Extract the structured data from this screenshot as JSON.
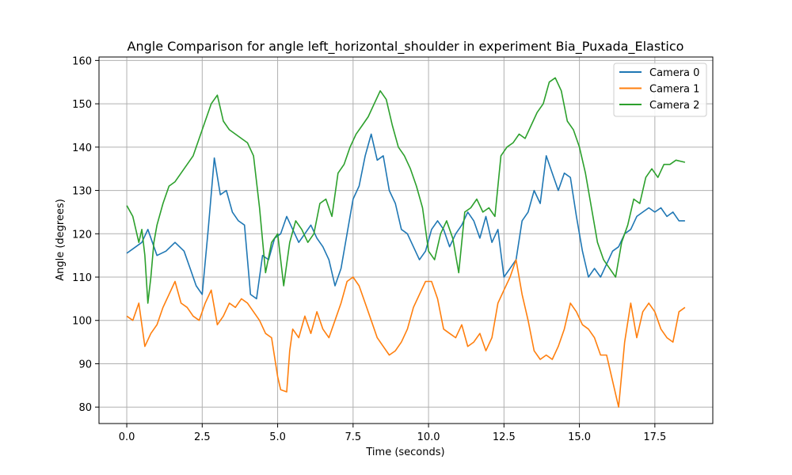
{
  "chart_data": {
    "type": "line",
    "title": "Angle Comparison for angle left_horizontal_shoulder in experiment Bia_Puxada_Elastico",
    "xlabel": "Time (seconds)",
    "ylabel": "Angle (degrees)",
    "xlim": [
      -0.92,
      19.42
    ],
    "ylim": [
      76.2,
      160.8
    ],
    "xticks": [
      0.0,
      2.5,
      5.0,
      7.5,
      10.0,
      12.5,
      15.0,
      17.5
    ],
    "xtick_labels": [
      "0.0",
      "2.5",
      "5.0",
      "7.5",
      "10.0",
      "12.5",
      "15.0",
      "17.5"
    ],
    "yticks": [
      80,
      90,
      100,
      110,
      120,
      130,
      140,
      150,
      160
    ],
    "ytick_labels": [
      "80",
      "90",
      "100",
      "110",
      "120",
      "130",
      "140",
      "150",
      "160"
    ],
    "grid": true,
    "legend_position": "top-right",
    "series": [
      {
        "name": "Camera 0",
        "color": "#1f77b4",
        "x": [
          0.0,
          0.3,
          0.5,
          0.7,
          1.0,
          1.3,
          1.6,
          1.9,
          2.1,
          2.3,
          2.5,
          2.7,
          2.9,
          3.1,
          3.3,
          3.5,
          3.7,
          3.9,
          4.1,
          4.3,
          4.5,
          4.7,
          4.9,
          5.1,
          5.3,
          5.5,
          5.7,
          5.9,
          6.1,
          6.3,
          6.5,
          6.7,
          6.9,
          7.1,
          7.3,
          7.5,
          7.7,
          7.9,
          8.1,
          8.3,
          8.5,
          8.7,
          8.9,
          9.1,
          9.3,
          9.5,
          9.7,
          9.9,
          10.1,
          10.3,
          10.5,
          10.7,
          10.9,
          11.1,
          11.3,
          11.5,
          11.7,
          11.9,
          12.1,
          12.3,
          12.5,
          12.7,
          12.9,
          13.1,
          13.3,
          13.5,
          13.7,
          13.9,
          14.1,
          14.3,
          14.5,
          14.7,
          14.9,
          15.1,
          15.3,
          15.5,
          15.7,
          15.9,
          16.1,
          16.3,
          16.5,
          16.7,
          16.9,
          17.1,
          17.3,
          17.5,
          17.7,
          17.9,
          18.1,
          18.3,
          18.5
        ],
        "y": [
          115.5,
          117,
          118,
          121,
          115,
          116,
          118,
          116,
          112,
          108,
          106,
          121,
          137.5,
          129,
          130,
          125,
          123,
          122,
          106,
          105,
          115,
          114,
          119,
          120,
          124,
          121,
          118,
          120,
          122,
          119,
          117,
          114,
          108,
          112,
          120,
          128,
          131,
          138,
          143,
          137,
          138,
          130,
          127,
          121,
          120,
          117,
          114,
          116,
          121,
          123,
          121,
          117,
          120,
          122,
          125,
          123,
          119,
          124,
          118,
          121,
          110,
          112,
          114,
          123,
          125,
          130,
          127,
          138,
          134,
          130,
          134,
          133,
          124,
          116,
          110,
          112,
          110,
          113,
          116,
          117,
          120,
          121,
          124,
          125,
          126,
          125,
          126,
          124,
          125,
          123,
          123
        ]
      },
      {
        "name": "Camera 1",
        "color": "#ff7f0e",
        "x": [
          0.0,
          0.2,
          0.4,
          0.6,
          0.8,
          1.0,
          1.2,
          1.4,
          1.6,
          1.8,
          2.0,
          2.2,
          2.4,
          2.6,
          2.8,
          3.0,
          3.2,
          3.4,
          3.6,
          3.8,
          4.0,
          4.2,
          4.4,
          4.6,
          4.8,
          5.0,
          5.1,
          5.3,
          5.4,
          5.5,
          5.7,
          5.9,
          6.1,
          6.3,
          6.5,
          6.7,
          6.9,
          7.1,
          7.3,
          7.5,
          7.7,
          7.9,
          8.1,
          8.3,
          8.5,
          8.7,
          8.9,
          9.1,
          9.3,
          9.5,
          9.7,
          9.9,
          10.1,
          10.3,
          10.5,
          10.7,
          10.9,
          11.1,
          11.3,
          11.5,
          11.7,
          11.9,
          12.1,
          12.3,
          12.5,
          12.7,
          12.9,
          13.1,
          13.3,
          13.5,
          13.7,
          13.9,
          14.1,
          14.3,
          14.5,
          14.7,
          14.9,
          15.1,
          15.3,
          15.5,
          15.7,
          15.9,
          16.1,
          16.3,
          16.5,
          16.7,
          16.9,
          17.1,
          17.3,
          17.5,
          17.7,
          17.9,
          18.1,
          18.3,
          18.5
        ],
        "y": [
          101,
          100,
          104,
          94,
          97,
          99,
          103,
          106,
          109,
          104,
          103,
          101,
          100,
          104,
          107,
          99,
          101,
          104,
          103,
          105,
          104,
          102,
          100,
          97,
          96,
          87,
          84,
          83.5,
          93,
          98,
          96,
          101,
          97,
          102,
          98,
          96,
          100,
          104,
          109,
          110,
          108,
          104,
          100,
          96,
          94,
          92,
          93,
          95,
          98,
          103,
          106,
          109,
          109,
          105,
          98,
          97,
          96,
          99,
          94,
          95,
          97,
          93,
          96,
          104,
          107,
          110,
          114,
          106,
          100,
          93,
          91,
          92,
          91,
          94,
          98,
          104,
          102,
          99,
          98,
          96,
          92,
          92,
          86,
          80,
          95,
          104,
          96,
          102,
          104,
          102,
          98,
          96,
          95,
          102,
          103
        ]
      },
      {
        "name": "Camera 2",
        "color": "#2ca02c",
        "x": [
          0.0,
          0.2,
          0.4,
          0.5,
          0.6,
          0.7,
          0.8,
          0.9,
          1.0,
          1.2,
          1.4,
          1.6,
          1.8,
          2.0,
          2.2,
          2.4,
          2.6,
          2.8,
          3.0,
          3.2,
          3.4,
          3.6,
          3.8,
          4.0,
          4.2,
          4.4,
          4.6,
          4.8,
          5.0,
          5.2,
          5.4,
          5.6,
          5.8,
          6.0,
          6.2,
          6.4,
          6.6,
          6.8,
          7.0,
          7.2,
          7.4,
          7.6,
          7.8,
          8.0,
          8.2,
          8.4,
          8.6,
          8.8,
          9.0,
          9.2,
          9.4,
          9.6,
          9.8,
          10.0,
          10.2,
          10.4,
          10.6,
          10.8,
          11.0,
          11.2,
          11.4,
          11.6,
          11.8,
          12.0,
          12.2,
          12.4,
          12.6,
          12.8,
          13.0,
          13.2,
          13.4,
          13.6,
          13.8,
          14.0,
          14.2,
          14.4,
          14.6,
          14.8,
          15.0,
          15.2,
          15.4,
          15.6,
          15.8,
          16.0,
          16.2,
          16.4,
          16.6,
          16.8,
          17.0,
          17.2,
          17.4,
          17.6,
          17.8,
          18.0,
          18.2,
          18.5
        ],
        "y": [
          126.5,
          124,
          118,
          121,
          115,
          104,
          110,
          118,
          122,
          127,
          131,
          132,
          134,
          136,
          138,
          142,
          146,
          150,
          152,
          146,
          144,
          143,
          142,
          141,
          138,
          126,
          111,
          118,
          120,
          108,
          118,
          123,
          121,
          118,
          120,
          127,
          128,
          124,
          134,
          136,
          140,
          143,
          145,
          147,
          150,
          153,
          151,
          145,
          140,
          138,
          135,
          131,
          126,
          116,
          114,
          120,
          123,
          119,
          111,
          125,
          126,
          128,
          125,
          126,
          124,
          138,
          140,
          141,
          143,
          142,
          145,
          148,
          150,
          155,
          156,
          153,
          146,
          144,
          140,
          134,
          126,
          118,
          114,
          112,
          110,
          118,
          122,
          128,
          127,
          133,
          135,
          133,
          136,
          136,
          137,
          136.5
        ]
      }
    ]
  }
}
